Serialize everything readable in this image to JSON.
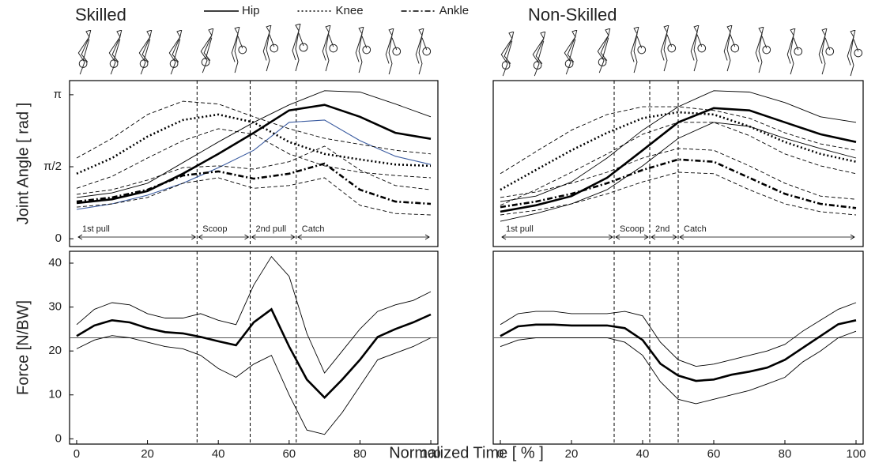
{
  "chart_data": [
    {
      "type": "line",
      "title": "Skilled",
      "ylabel": "Joint Angle [ rad ]",
      "x": [
        0,
        10,
        20,
        30,
        40,
        50,
        60,
        70,
        80,
        90,
        100
      ],
      "xlim": [
        -2,
        102
      ],
      "ylim": [
        -0.17,
        3.45
      ],
      "yticks": [
        0,
        {
          "value": 1.5708,
          "label": "π/2"
        },
        {
          "value": 3.1416,
          "label": "π"
        }
      ],
      "phases": {
        "edges": [
          0,
          34,
          49,
          62,
          100
        ],
        "labels": [
          "1st pull",
          "Scoop",
          "2nd pull",
          "Catch"
        ]
      },
      "series": [
        {
          "name": "Hip",
          "style": "solid",
          "line_width": 2.6,
          "color": "#000000",
          "values": [
            0.78,
            0.86,
            1.04,
            1.42,
            1.85,
            2.31,
            2.8,
            2.92,
            2.66,
            2.31,
            2.18
          ]
        },
        {
          "style": "solid",
          "line_width": 0.9,
          "color": "#000000",
          "values": [
            0.9,
            1.0,
            1.21,
            1.66,
            2.11,
            2.54,
            2.92,
            3.23,
            3.2,
            2.94,
            2.66
          ]
        },
        {
          "style": "solid",
          "line_width": 1.1,
          "color": "#3a5ba0",
          "values": [
            0.64,
            0.76,
            0.95,
            1.21,
            1.55,
            1.93,
            2.54,
            2.59,
            2.14,
            1.8,
            1.62
          ]
        },
        {
          "name": "Knee",
          "style": "dotted",
          "line_width": 2.6,
          "color": "#000000",
          "values": [
            1.42,
            1.76,
            2.23,
            2.59,
            2.71,
            2.54,
            2.11,
            1.85,
            1.73,
            1.62,
            1.59
          ]
        },
        {
          "style": "dashed",
          "line_width": 0.9,
          "color": "#000000",
          "values": [
            1.76,
            2.19,
            2.71,
            3.0,
            2.94,
            2.66,
            2.4,
            2.19,
            2.06,
            1.93,
            1.85
          ]
        },
        {
          "style": "dashed",
          "line_width": 0.9,
          "color": "#000000",
          "values": [
            1.1,
            1.36,
            1.76,
            2.14,
            2.4,
            2.28,
            1.85,
            1.59,
            1.45,
            1.38,
            1.33
          ]
        },
        {
          "name": "Ankle",
          "style": "dashdot",
          "line_width": 2.6,
          "color": "#000000",
          "values": [
            0.81,
            0.9,
            1.07,
            1.38,
            1.47,
            1.31,
            1.42,
            1.64,
            1.07,
            0.81,
            0.76
          ]
        },
        {
          "style": "dashed",
          "line_width": 0.9,
          "color": "#000000",
          "values": [
            0.97,
            1.07,
            1.28,
            1.55,
            1.59,
            1.52,
            1.68,
            2.02,
            1.5,
            1.16,
            1.07
          ]
        },
        {
          "style": "dashed",
          "line_width": 0.9,
          "color": "#000000",
          "values": [
            0.69,
            0.76,
            0.9,
            1.21,
            1.33,
            1.1,
            1.16,
            1.33,
            0.73,
            0.55,
            0.52
          ]
        }
      ]
    },
    {
      "type": "line",
      "title": "Non-Skilled",
      "x": [
        0,
        10,
        20,
        30,
        40,
        50,
        60,
        70,
        80,
        90,
        100
      ],
      "xlim": [
        -2,
        102
      ],
      "ylim": [
        -0.17,
        3.45
      ],
      "phases": {
        "edges": [
          0,
          32,
          42,
          50,
          100
        ],
        "labels": [
          "1st pull",
          "Scoop",
          "2nd",
          "Catch"
        ]
      },
      "series": [
        {
          "style": "solid",
          "line_width": 2.6,
          "color": "#000000",
          "values": [
            0.59,
            0.73,
            0.93,
            1.33,
            1.93,
            2.54,
            2.85,
            2.8,
            2.54,
            2.28,
            2.11
          ]
        },
        {
          "style": "solid",
          "line_width": 0.9,
          "color": "#000000",
          "values": [
            0.81,
            0.93,
            1.24,
            1.76,
            2.37,
            2.88,
            3.23,
            3.2,
            2.97,
            2.66,
            2.54
          ]
        },
        {
          "style": "solid",
          "line_width": 0.9,
          "color": "#000000",
          "values": [
            0.38,
            0.55,
            0.76,
            1.07,
            1.59,
            2.19,
            2.54,
            2.45,
            2.19,
            1.97,
            1.76
          ]
        },
        {
          "style": "dotted",
          "line_width": 2.6,
          "color": "#000000",
          "values": [
            1.07,
            1.5,
            1.93,
            2.31,
            2.63,
            2.76,
            2.71,
            2.45,
            2.11,
            1.85,
            1.68
          ]
        },
        {
          "style": "dashed",
          "line_width": 0.9,
          "color": "#000000",
          "values": [
            1.42,
            1.9,
            2.37,
            2.71,
            2.88,
            2.88,
            2.8,
            2.63,
            2.31,
            2.07,
            1.93
          ]
        },
        {
          "style": "dashed",
          "line_width": 0.9,
          "color": "#000000",
          "values": [
            0.73,
            1.07,
            1.45,
            1.85,
            2.28,
            2.54,
            2.54,
            2.25,
            1.85,
            1.59,
            1.42
          ]
        },
        {
          "style": "dashdot",
          "line_width": 2.6,
          "color": "#000000",
          "values": [
            0.69,
            0.81,
            0.98,
            1.21,
            1.5,
            1.73,
            1.68,
            1.33,
            0.98,
            0.76,
            0.67
          ]
        },
        {
          "style": "dashed",
          "line_width": 0.9,
          "color": "#000000",
          "values": [
            0.9,
            1.02,
            1.21,
            1.45,
            1.76,
            1.97,
            1.93,
            1.59,
            1.21,
            0.93,
            0.86
          ]
        },
        {
          "style": "dashed",
          "line_width": 0.9,
          "color": "#000000",
          "values": [
            0.52,
            0.62,
            0.76,
            0.98,
            1.24,
            1.45,
            1.42,
            1.07,
            0.76,
            0.59,
            0.52
          ]
        }
      ]
    },
    {
      "type": "line",
      "ylabel": "Force [N/BW]",
      "xlabel": "Normalized Time [ % ]",
      "x": [
        0,
        5,
        10,
        15,
        20,
        25,
        30,
        35,
        40,
        45,
        50,
        55,
        60,
        65,
        70,
        75,
        80,
        85,
        90,
        95,
        100
      ],
      "xlim": [
        -2,
        102
      ],
      "ylim": [
        -1.2,
        42.7
      ],
      "xticks": [
        0,
        20,
        40,
        60,
        80,
        100
      ],
      "yticks": [
        0,
        10,
        20,
        30,
        40
      ],
      "ref_line": 23,
      "phase_lines": [
        34,
        49,
        62
      ],
      "series": [
        {
          "style": "solid",
          "line_width": 2.6,
          "color": "#000000",
          "values": [
            23.4,
            25.8,
            27,
            26.5,
            25.2,
            24.3,
            24,
            23.2,
            22.2,
            21.3,
            26.5,
            29.5,
            21,
            13.5,
            9.4,
            13.5,
            18,
            23.2,
            25,
            26.5,
            28.3
          ]
        },
        {
          "style": "solid",
          "line_width": 0.9,
          "color": "#000000",
          "values": [
            26,
            29.5,
            31,
            30.5,
            28.5,
            27.5,
            27.5,
            28.5,
            27,
            26,
            35,
            41.5,
            37,
            24,
            15,
            20,
            25,
            29,
            30.5,
            31.5,
            33.5
          ]
        },
        {
          "style": "solid",
          "line_width": 0.9,
          "color": "#000000",
          "values": [
            20.5,
            22.5,
            23.5,
            23,
            22,
            21,
            20.5,
            19,
            16,
            14,
            17,
            19,
            10,
            2,
            1,
            6,
            12,
            18,
            19.5,
            21,
            23
          ]
        }
      ]
    },
    {
      "type": "line",
      "x": [
        0,
        5,
        10,
        15,
        20,
        25,
        30,
        35,
        40,
        45,
        50,
        55,
        60,
        65,
        70,
        75,
        80,
        85,
        90,
        95,
        100
      ],
      "xlim": [
        -2,
        102
      ],
      "ylim": [
        -1.2,
        42.7
      ],
      "xticks": [
        0,
        20,
        40,
        60,
        80,
        100
      ],
      "ref_line": 23,
      "phase_lines": [
        32,
        42,
        50
      ],
      "series": [
        {
          "style": "solid",
          "line_width": 2.6,
          "color": "#000000",
          "values": [
            23.4,
            25.6,
            26,
            26,
            25.8,
            25.8,
            25.8,
            25.2,
            22.5,
            17.1,
            14.4,
            13.2,
            13.5,
            14.6,
            15.3,
            16.2,
            18,
            20.7,
            23.4,
            26.1,
            27
          ]
        },
        {
          "style": "solid",
          "line_width": 0.9,
          "color": "#000000",
          "values": [
            26,
            28.5,
            29,
            29,
            28.5,
            28.5,
            28.5,
            29,
            28,
            22,
            18,
            16.5,
            17,
            18,
            19,
            20,
            21.5,
            24.5,
            27,
            29.5,
            31
          ]
        },
        {
          "style": "solid",
          "line_width": 0.9,
          "color": "#000000",
          "values": [
            21,
            22.5,
            23,
            23,
            23,
            23,
            23,
            22,
            19,
            13,
            9,
            8,
            9,
            10,
            11,
            12.5,
            14,
            17.5,
            20,
            23,
            24.5
          ]
        }
      ]
    }
  ]
}
